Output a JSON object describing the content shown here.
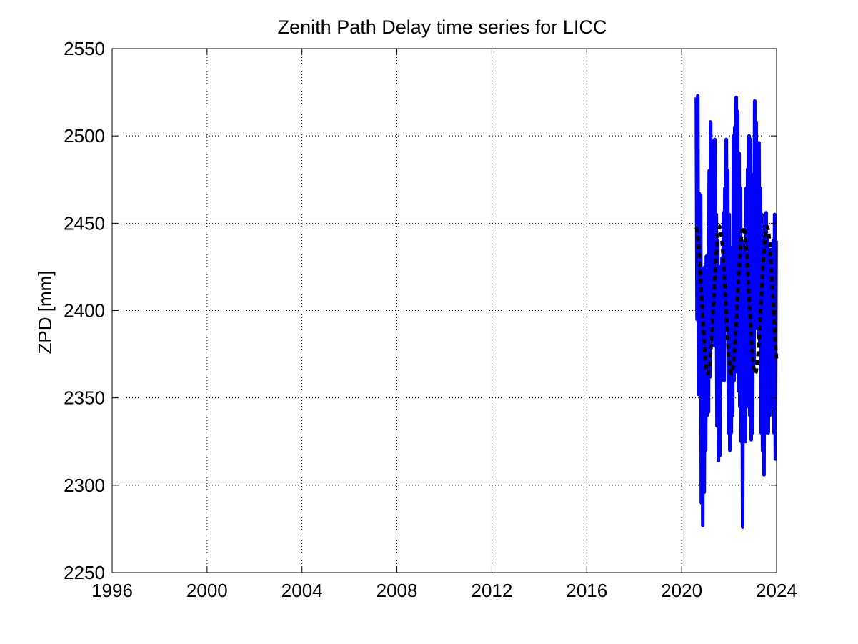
{
  "chart_data": {
    "type": "line",
    "title": "Zenith Path Delay time series for LICC",
    "xlabel": "",
    "ylabel": "ZPD [mm]",
    "xlim": [
      1996,
      2024
    ],
    "ylim": [
      2250,
      2550
    ],
    "xticks": [
      "1996",
      "2000",
      "2004",
      "2008",
      "2012",
      "2016",
      "2020",
      "2024"
    ],
    "yticks": [
      "2250",
      "2300",
      "2350",
      "2400",
      "2450",
      "2500",
      "2550"
    ],
    "grid": true,
    "colors": {
      "observed": "#0000ff",
      "model": "#000000",
      "grid": "#000000"
    },
    "series": [
      {
        "style": "solid",
        "x": [
          2020.62,
          2020.65,
          2020.68,
          2020.71,
          2020.74,
          2020.77,
          2020.8,
          2020.83,
          2020.86,
          2020.89,
          2020.92,
          2020.95,
          2020.98,
          2021.01,
          2021.04,
          2021.07,
          2021.1,
          2021.13,
          2021.16,
          2021.19,
          2021.22,
          2021.25,
          2021.28,
          2021.31,
          2021.34,
          2021.37,
          2021.4,
          2021.43,
          2021.46,
          2021.49,
          2021.52,
          2021.55,
          2021.58,
          2021.61,
          2021.64,
          2021.67,
          2021.7,
          2021.73,
          2021.76,
          2021.79,
          2021.82,
          2021.85,
          2021.88,
          2021.91,
          2021.94,
          2021.97,
          2022.0,
          2022.03,
          2022.06,
          2022.09,
          2022.12,
          2022.15,
          2022.18,
          2022.21,
          2022.24,
          2022.27,
          2022.3,
          2022.33,
          2022.36,
          2022.39,
          2022.42,
          2022.45,
          2022.48,
          2022.51,
          2022.54,
          2022.57,
          2022.6,
          2022.63,
          2022.66,
          2022.69,
          2022.72,
          2022.75,
          2022.78,
          2022.81,
          2022.84,
          2022.87,
          2022.9,
          2022.93,
          2022.96,
          2022.99,
          2023.02,
          2023.05,
          2023.08,
          2023.11,
          2023.14,
          2023.17,
          2023.2,
          2023.23,
          2023.26,
          2023.29,
          2023.32,
          2023.35,
          2023.38,
          2023.41,
          2023.44,
          2023.47,
          2023.5,
          2023.53,
          2023.56,
          2023.59,
          2023.62,
          2023.65,
          2023.68,
          2023.71,
          2023.74,
          2023.77,
          2023.8,
          2023.83,
          2023.86,
          2023.89,
          2023.92,
          2023.95,
          2023.98
        ],
        "y": [
          2522,
          2395,
          2523,
          2352,
          2467,
          2360,
          2466,
          2290,
          2410,
          2277,
          2424,
          2296,
          2425,
          2320,
          2431,
          2340,
          2432,
          2342,
          2480,
          2362,
          2508,
          2385,
          2497,
          2416,
          2470,
          2380,
          2498,
          2420,
          2455,
          2334,
          2440,
          2314,
          2425,
          2317,
          2412,
          2360,
          2430,
          2380,
          2456,
          2360,
          2470,
          2400,
          2498,
          2390,
          2480,
          2330,
          2455,
          2320,
          2436,
          2330,
          2417,
          2340,
          2500,
          2360,
          2505,
          2400,
          2522,
          2365,
          2514,
          2354,
          2490,
          2345,
          2470,
          2325,
          2440,
          2276,
          2420,
          2330,
          2435,
          2325,
          2470,
          2345,
          2481,
          2365,
          2500,
          2340,
          2498,
          2326,
          2478,
          2330,
          2475,
          2370,
          2520,
          2390,
          2508,
          2410,
          2495,
          2385,
          2496,
          2380,
          2470,
          2330,
          2455,
          2320,
          2438,
          2306,
          2440,
          2330,
          2456,
          2345,
          2440,
          2330,
          2420,
          2340,
          2435,
          2360,
          2420,
          2345,
          2440,
          2330,
          2455,
          2315,
          2440
        ]
      },
      {
        "style": "dashed",
        "mean": 2406,
        "amplitude": 42,
        "peak_phase": 0.6,
        "x_start": 2020.62,
        "x_end": 2024.0
      }
    ]
  }
}
